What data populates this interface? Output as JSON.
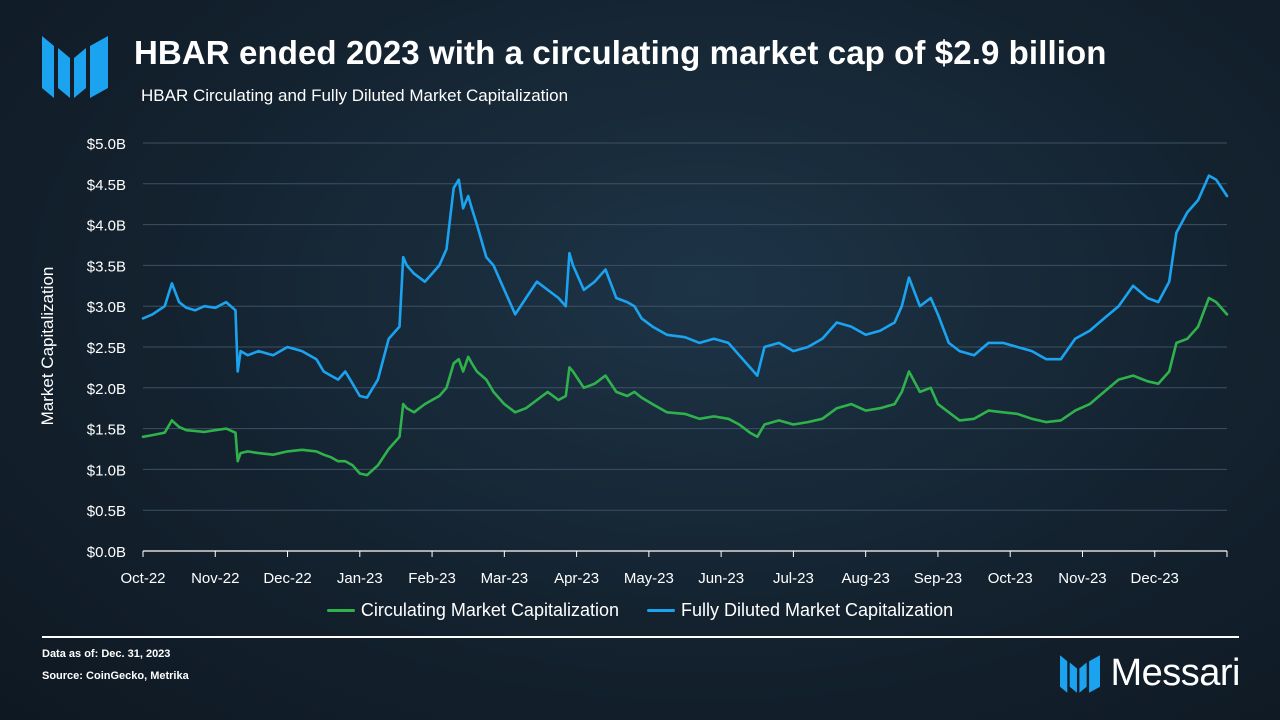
{
  "header": {
    "title": "HBAR ended 2023 with a circulating market cap of $2.9 billion",
    "subtitle": "HBAR Circulating and Fully Diluted Market Capitalization"
  },
  "chart_data": {
    "type": "line",
    "title": "HBAR Circulating and Fully Diluted Market Capitalization",
    "xlabel": "",
    "ylabel": "Market Capitalization",
    "ylim": [
      0,
      5.0
    ],
    "y_ticks": [
      0,
      0.5,
      1.0,
      1.5,
      2.0,
      2.5,
      3.0,
      3.5,
      4.0,
      4.5,
      5.0
    ],
    "y_tick_labels": [
      "$0.0B",
      "$0.5B",
      "$1.0B",
      "$1.5B",
      "$2.0B",
      "$2.5B",
      "$3.0B",
      "$3.5B",
      "$4.0B",
      "$4.5B",
      "$5.0B"
    ],
    "x_tick_labels": [
      "Oct-22",
      "Nov-22",
      "Dec-22",
      "Jan-23",
      "Feb-23",
      "Mar-23",
      "Apr-23",
      "May-23",
      "Jun-23",
      "Jul-23",
      "Aug-23",
      "Sep-23",
      "Oct-23",
      "Nov-23",
      "Dec-23"
    ],
    "x_range": [
      0,
      15
    ],
    "grid": true,
    "legend_position": "bottom",
    "series": [
      {
        "name": "Circulating Market Capitalization",
        "color": "#2fb24c",
        "x": [
          0,
          0.13,
          0.3,
          0.4,
          0.5,
          0.6,
          0.72,
          0.85,
          1.0,
          1.15,
          1.28,
          1.31,
          1.35,
          1.45,
          1.6,
          1.8,
          2.0,
          2.2,
          2.4,
          2.5,
          2.6,
          2.7,
          2.8,
          2.9,
          3.0,
          3.1,
          3.25,
          3.4,
          3.55,
          3.6,
          3.65,
          3.75,
          3.9,
          4.0,
          4.1,
          4.2,
          4.3,
          4.37,
          4.43,
          4.5,
          4.55,
          4.62,
          4.75,
          4.85,
          5.0,
          5.15,
          5.3,
          5.45,
          5.6,
          5.75,
          5.85,
          5.9,
          5.95,
          6.1,
          6.25,
          6.4,
          6.55,
          6.7,
          6.8,
          6.9,
          7.05,
          7.25,
          7.5,
          7.7,
          7.9,
          8.1,
          8.25,
          8.4,
          8.5,
          8.6,
          8.8,
          9.0,
          9.2,
          9.4,
          9.6,
          9.8,
          10.0,
          10.2,
          10.4,
          10.5,
          10.6,
          10.75,
          10.9,
          11.0,
          11.15,
          11.3,
          11.5,
          11.7,
          11.9,
          12.1,
          12.3,
          12.5,
          12.7,
          12.9,
          13.1,
          13.3,
          13.5,
          13.7,
          13.9,
          14.05,
          14.2,
          14.3,
          14.45,
          14.6,
          14.75,
          14.85,
          15.0
        ],
        "values": [
          1.4,
          1.42,
          1.45,
          1.6,
          1.52,
          1.48,
          1.47,
          1.46,
          1.48,
          1.5,
          1.45,
          1.1,
          1.2,
          1.22,
          1.2,
          1.18,
          1.22,
          1.24,
          1.22,
          1.18,
          1.15,
          1.1,
          1.1,
          1.05,
          0.95,
          0.93,
          1.05,
          1.25,
          1.4,
          1.8,
          1.75,
          1.7,
          1.8,
          1.85,
          1.9,
          2.0,
          2.3,
          2.35,
          2.2,
          2.38,
          2.3,
          2.2,
          2.1,
          1.95,
          1.8,
          1.7,
          1.75,
          1.85,
          1.95,
          1.85,
          1.9,
          2.25,
          2.2,
          2.0,
          2.05,
          2.15,
          1.95,
          1.9,
          1.95,
          1.88,
          1.8,
          1.7,
          1.68,
          1.62,
          1.65,
          1.62,
          1.55,
          1.45,
          1.4,
          1.55,
          1.6,
          1.55,
          1.58,
          1.62,
          1.75,
          1.8,
          1.72,
          1.75,
          1.8,
          1.95,
          2.2,
          1.95,
          2.0,
          1.8,
          1.7,
          1.6,
          1.62,
          1.72,
          1.7,
          1.68,
          1.62,
          1.58,
          1.6,
          1.72,
          1.8,
          1.95,
          2.1,
          2.15,
          2.08,
          2.05,
          2.2,
          2.55,
          2.6,
          2.75,
          3.1,
          3.05,
          2.9
        ]
      },
      {
        "name": "Fully Diluted Market Capitalization",
        "color": "#1ba3f0",
        "x": [
          0,
          0.13,
          0.3,
          0.4,
          0.5,
          0.6,
          0.72,
          0.85,
          1.0,
          1.15,
          1.28,
          1.31,
          1.35,
          1.45,
          1.6,
          1.8,
          2.0,
          2.2,
          2.4,
          2.5,
          2.6,
          2.7,
          2.8,
          2.9,
          3.0,
          3.1,
          3.25,
          3.4,
          3.55,
          3.6,
          3.65,
          3.75,
          3.9,
          4.0,
          4.1,
          4.2,
          4.3,
          4.37,
          4.43,
          4.5,
          4.55,
          4.62,
          4.75,
          4.85,
          5.0,
          5.15,
          5.3,
          5.45,
          5.6,
          5.75,
          5.85,
          5.9,
          5.95,
          6.1,
          6.25,
          6.4,
          6.55,
          6.7,
          6.8,
          6.9,
          7.05,
          7.25,
          7.5,
          7.7,
          7.9,
          8.1,
          8.25,
          8.4,
          8.5,
          8.6,
          8.8,
          9.0,
          9.2,
          9.4,
          9.6,
          9.8,
          10.0,
          10.2,
          10.4,
          10.5,
          10.6,
          10.75,
          10.9,
          11.0,
          11.15,
          11.3,
          11.5,
          11.7,
          11.9,
          12.1,
          12.3,
          12.5,
          12.7,
          12.9,
          13.1,
          13.3,
          13.5,
          13.7,
          13.9,
          14.05,
          14.2,
          14.3,
          14.45,
          14.6,
          14.75,
          14.85,
          15.0
        ],
        "values": [
          2.85,
          2.9,
          3.0,
          3.28,
          3.05,
          2.98,
          2.95,
          3.0,
          2.98,
          3.05,
          2.95,
          2.2,
          2.45,
          2.4,
          2.45,
          2.4,
          2.5,
          2.45,
          2.35,
          2.2,
          2.15,
          2.1,
          2.2,
          2.05,
          1.9,
          1.88,
          2.1,
          2.6,
          2.75,
          3.6,
          3.5,
          3.4,
          3.3,
          3.4,
          3.5,
          3.7,
          4.45,
          4.55,
          4.2,
          4.35,
          4.2,
          4.0,
          3.6,
          3.5,
          3.2,
          2.9,
          3.1,
          3.3,
          3.2,
          3.1,
          3.0,
          3.65,
          3.5,
          3.2,
          3.3,
          3.45,
          3.1,
          3.05,
          3.0,
          2.85,
          2.75,
          2.65,
          2.62,
          2.55,
          2.6,
          2.55,
          2.4,
          2.25,
          2.15,
          2.5,
          2.55,
          2.45,
          2.5,
          2.6,
          2.8,
          2.75,
          2.65,
          2.7,
          2.8,
          3.0,
          3.35,
          3.0,
          3.1,
          2.9,
          2.55,
          2.45,
          2.4,
          2.55,
          2.55,
          2.5,
          2.45,
          2.35,
          2.35,
          2.6,
          2.7,
          2.85,
          3.0,
          3.25,
          3.1,
          3.05,
          3.3,
          3.9,
          4.15,
          4.3,
          4.6,
          4.55,
          4.35
        ]
      }
    ]
  },
  "footer": {
    "data_as_of_label": "Data as of:",
    "data_as_of_value": "Dec. 31, 2023",
    "source_label": "Source:",
    "source_value": "CoinGecko,  Metrika",
    "brand_name": "Messari"
  },
  "colors": {
    "brand_blue": "#1ba3f0",
    "circulating_green": "#2fb24c",
    "background": "#14222f"
  },
  "icons": {
    "logo": "messari-logo-icon"
  }
}
